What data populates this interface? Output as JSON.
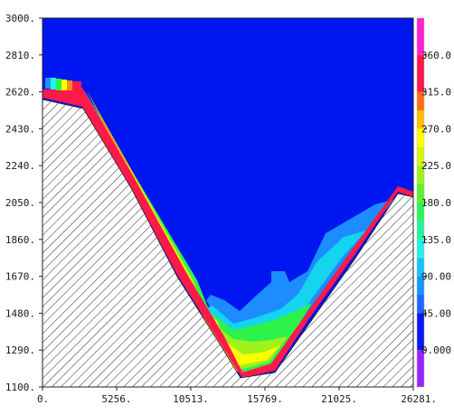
{
  "chart_data": {
    "type": "heatmap",
    "title": "",
    "xlabel": "",
    "ylabel": "",
    "xlim": [
      0,
      26281
    ],
    "ylim": [
      1100,
      3000
    ],
    "x_ticks": [
      {
        "value": 0,
        "label": "0."
      },
      {
        "value": 5256,
        "label": "5256."
      },
      {
        "value": 10513,
        "label": "10513."
      },
      {
        "value": 15769,
        "label": "15769."
      },
      {
        "value": 21025,
        "label": "21025."
      },
      {
        "value": 26281,
        "label": "26281."
      }
    ],
    "y_ticks": [
      {
        "value": 1100,
        "label": "1100."
      },
      {
        "value": 1290,
        "label": "1290."
      },
      {
        "value": 1480,
        "label": "1480."
      },
      {
        "value": 1670,
        "label": "1670."
      },
      {
        "value": 1860,
        "label": "1860."
      },
      {
        "value": 2050,
        "label": "2050."
      },
      {
        "value": 2240,
        "label": "2240."
      },
      {
        "value": 2430,
        "label": "2430."
      },
      {
        "value": 2620,
        "label": "2620."
      },
      {
        "value": 2810,
        "label": "2810."
      },
      {
        "value": 3000,
        "label": "3000."
      }
    ],
    "background_color": "#0016f0",
    "terrain_hatch": true,
    "colorbar": {
      "position": "right",
      "vmin": -45,
      "vmax": 405,
      "bands": [
        {
          "from": -45,
          "to": 0,
          "color": "#9a24ff"
        },
        {
          "from": 0,
          "to": 45,
          "color": "#0a18f2"
        },
        {
          "from": 45,
          "to": 67.5,
          "color": "#1d66ff"
        },
        {
          "from": 67.5,
          "to": 90,
          "color": "#1496ff"
        },
        {
          "from": 90,
          "to": 112.5,
          "color": "#14c4ff"
        },
        {
          "from": 112.5,
          "to": 135,
          "color": "#22f2e2"
        },
        {
          "from": 135,
          "to": 157.5,
          "color": "#22f2a0"
        },
        {
          "from": 157.5,
          "to": 180,
          "color": "#2ef25a"
        },
        {
          "from": 180,
          "to": 202.5,
          "color": "#5af22a"
        },
        {
          "from": 202.5,
          "to": 225,
          "color": "#9af21a"
        },
        {
          "from": 225,
          "to": 247.5,
          "color": "#d8f214"
        },
        {
          "from": 247.5,
          "to": 270,
          "color": "#ffff00"
        },
        {
          "from": 270,
          "to": 292.5,
          "color": "#ffbe00"
        },
        {
          "from": 292.5,
          "to": 315,
          "color": "#ff6e12"
        },
        {
          "from": 315,
          "to": 360,
          "color": "#ff1a4a"
        },
        {
          "from": 360,
          "to": 405,
          "color": "#ff22d0"
        }
      ],
      "ticks": [
        {
          "value": 0,
          "label": "0.000"
        },
        {
          "value": 45,
          "label": "45.00"
        },
        {
          "value": 90,
          "label": "90.00"
        },
        {
          "value": 135,
          "label": "135.0"
        },
        {
          "value": 180,
          "label": "180.0"
        },
        {
          "value": 225,
          "label": "225.0"
        },
        {
          "value": 270,
          "label": "270.0"
        },
        {
          "value": 315,
          "label": "315.0"
        },
        {
          "value": 360,
          "label": "360.0"
        }
      ]
    }
  }
}
